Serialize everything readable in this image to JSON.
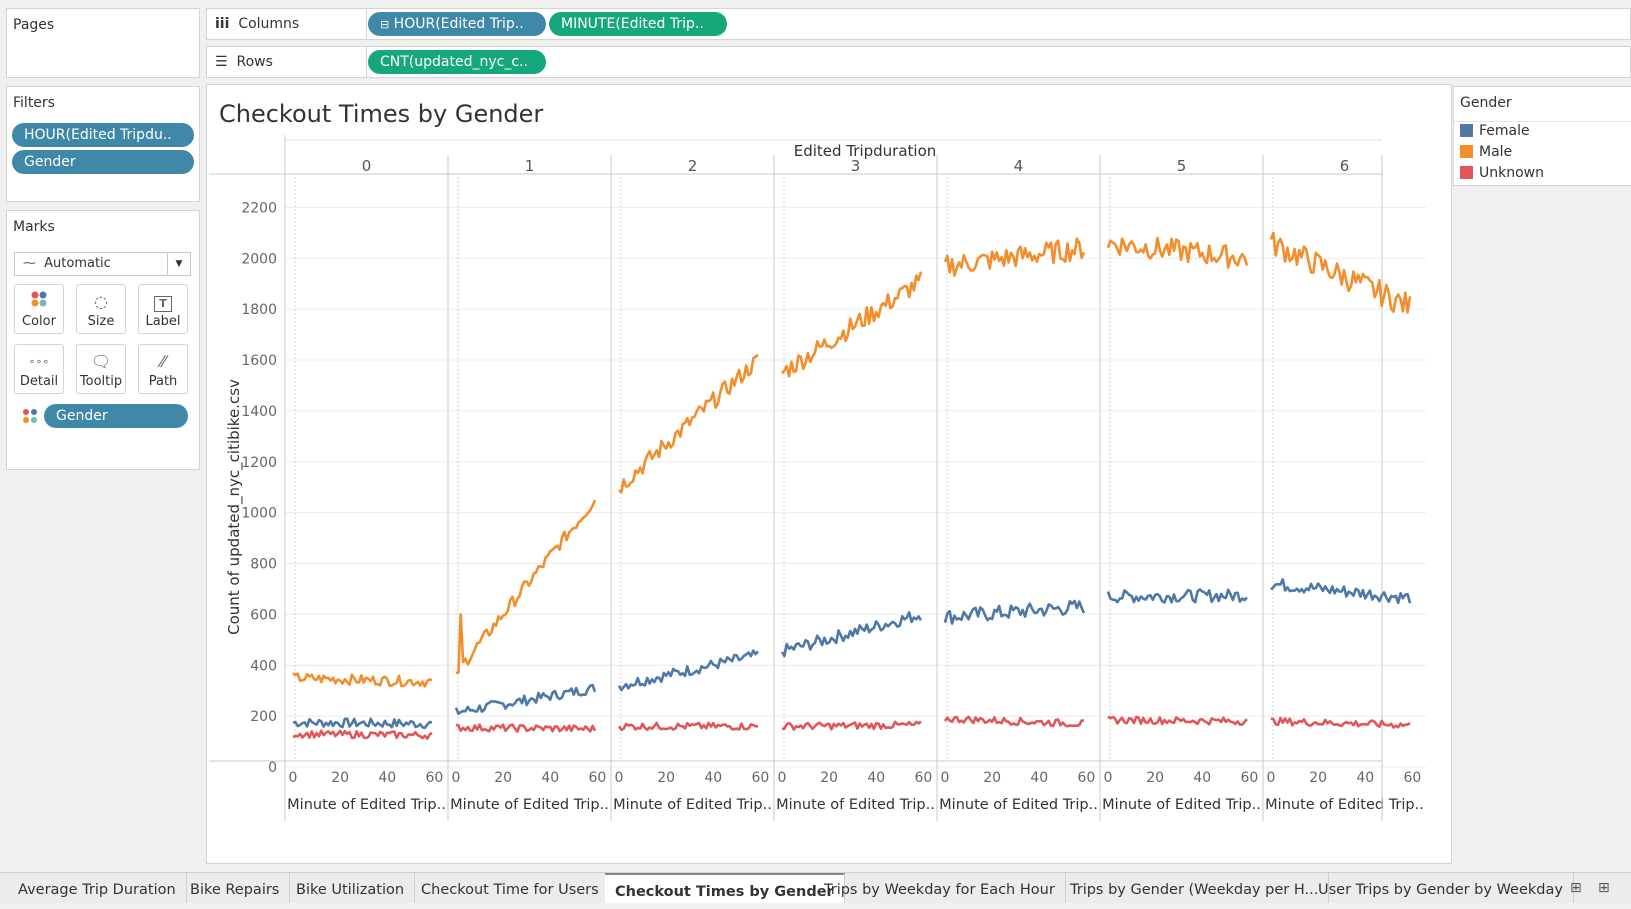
{
  "pages": {
    "title": "Pages"
  },
  "shelves": {
    "columns_label": "Columns",
    "rows_label": "Rows",
    "columns_pills": [
      "HOUR(Edited Trip..",
      "MINUTE(Edited Trip.."
    ],
    "rows_pills": [
      "CNT(updated_nyc_c.."
    ]
  },
  "filters": {
    "title": "Filters",
    "items": [
      "HOUR(Edited Tripdu..",
      "Gender"
    ]
  },
  "marks": {
    "title": "Marks",
    "type": "Automatic",
    "cards": [
      "Color",
      "Size",
      "Label",
      "Detail",
      "Tooltip",
      "Path"
    ],
    "field": "Gender"
  },
  "legend": {
    "title": "Gender",
    "items": [
      {
        "label": "Female",
        "color": "#4e79a7"
      },
      {
        "label": "Male",
        "color": "#f28e2b"
      },
      {
        "label": "Unknown",
        "color": "#e15759"
      }
    ]
  },
  "tabs": [
    "Average Trip Duration",
    "Bike Repairs",
    "Bike Utilization",
    "Checkout Time for Users",
    "Checkout Times by Gender",
    "Trips by Weekday for Each Hour",
    "Trips by Gender (Weekday per H...",
    "User Trips by Gender by Weekday"
  ],
  "active_tab": "Checkout Times by Gender",
  "chart_data": {
    "type": "line",
    "title": "Checkout Times by Gender",
    "column_header": "Edited Tripduration",
    "panes": [
      "0",
      "1",
      "2",
      "3",
      "4",
      "5",
      "6"
    ],
    "xlabel": "Minute of Edited Trip..",
    "x_ticks": [
      0,
      20,
      40,
      60
    ],
    "xlim": [
      0,
      59
    ],
    "ylabel": "Count of updated_nyc_citibike.csv",
    "y_ticks": [
      0,
      200,
      400,
      600,
      800,
      1000,
      1200,
      1400,
      1600,
      1800,
      2000,
      2200
    ],
    "ylim": [
      0,
      2300
    ],
    "grid": true,
    "series": [
      {
        "name": "Female",
        "color": "#4e79a7",
        "start": [
          175,
          215,
          320,
          455,
          590,
          670,
          720
        ],
        "end": [
          170,
          310,
          440,
          600,
          630,
          675,
          665
        ],
        "noise": [
          18,
          20,
          22,
          25,
          30,
          25,
          25
        ]
      },
      {
        "name": "Male",
        "color": "#f28e2b",
        "start": [
          350,
          370,
          1100,
          1550,
          1970,
          2060,
          2060
        ],
        "end": [
          335,
          1050,
          1600,
          1910,
          2040,
          2000,
          1810
        ],
        "noise": [
          20,
          25,
          35,
          40,
          45,
          45,
          50
        ]
      },
      {
        "name": "Unknown",
        "color": "#e15759",
        "start": [
          130,
          155,
          160,
          160,
          190,
          185,
          180
        ],
        "end": [
          125,
          150,
          160,
          165,
          170,
          180,
          165
        ],
        "noise": [
          14,
          14,
          14,
          14,
          14,
          14,
          14
        ]
      }
    ]
  }
}
